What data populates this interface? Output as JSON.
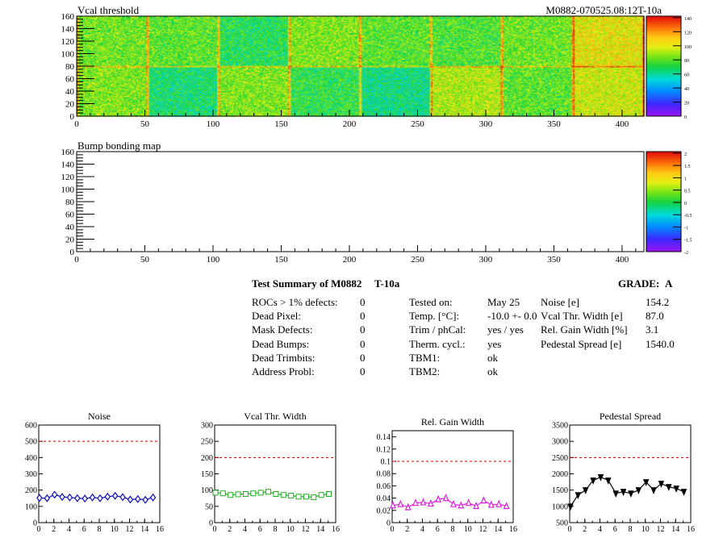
{
  "maps": [
    {
      "title": "Vcal threshold",
      "module_label": "M0882-070525.08:12T-10a",
      "xticks": [
        0,
        50,
        100,
        150,
        200,
        250,
        300,
        350,
        400
      ],
      "yticks": [
        0,
        20,
        40,
        60,
        80,
        100,
        120,
        140,
        160
      ],
      "palette_ticks": [
        "0",
        "20",
        "40",
        "60",
        "80",
        "100",
        "120",
        "140"
      ],
      "roc_means_top": [
        85,
        82,
        72,
        88,
        82,
        80,
        85,
        105
      ],
      "roc_means_bottom": [
        88,
        68,
        88,
        74,
        65,
        95,
        82,
        100
      ]
    },
    {
      "title": "Bump bonding map",
      "xticks": [
        0,
        50,
        100,
        150,
        200,
        250,
        300,
        350,
        400
      ],
      "yticks": [
        0,
        20,
        40,
        60,
        80,
        100,
        120,
        140,
        160
      ],
      "palette_ticks": [
        "-2",
        "-1.5",
        "-1",
        "-0.5",
        "0",
        "0.5",
        "1",
        "1.5",
        "2"
      ]
    }
  ],
  "summary": {
    "title": "Test Summary of M0882",
    "test_label": "T-10a",
    "grade_label": "GRADE:",
    "grade": "A",
    "defects": [
      {
        "label": "ROCs > 1% defects:",
        "value": "0"
      },
      {
        "label": "Dead Pixel:",
        "value": "0"
      },
      {
        "label": "Mask Defects:",
        "value": "0"
      },
      {
        "label": "Dead Bumps:",
        "value": "0"
      },
      {
        "label": "Dead Trimbits:",
        "value": "0"
      },
      {
        "label": "Address Probl:",
        "value": "0"
      }
    ],
    "conditions": [
      {
        "label": "Tested on:",
        "value": "May 25"
      },
      {
        "label": "Temp. [°C]:",
        "value": "-10.0 +- 0.0"
      },
      {
        "label": "Trim / phCal:",
        "value": "yes / yes"
      },
      {
        "label": "Therm. cycl.:",
        "value": "yes"
      },
      {
        "label": "TBM1:",
        "value": "ok"
      },
      {
        "label": "TBM2:",
        "value": "ok"
      }
    ],
    "results": [
      {
        "label": "Noise [e]",
        "value": "154.2"
      },
      {
        "label": "Vcal Thr. Width [e]",
        "value": "87.0"
      },
      {
        "label": "Rel. Gain Width [%]",
        "value": "3.1"
      },
      {
        "label": "Pedestal Spread [e]",
        "value": "1540.0"
      }
    ]
  },
  "chart_data": [
    {
      "type": "scatter",
      "title": "Noise",
      "x": [
        0,
        1,
        2,
        3,
        4,
        5,
        6,
        7,
        8,
        9,
        10,
        11,
        12,
        13,
        14,
        15
      ],
      "values": [
        152,
        150,
        172,
        158,
        155,
        150,
        148,
        155,
        150,
        160,
        165,
        157,
        142,
        145,
        140,
        155
      ],
      "ylim": [
        0,
        600
      ],
      "yticks": [
        "0",
        "100",
        "200",
        "300",
        "400",
        "500",
        "600"
      ],
      "xlim": [
        0,
        16
      ],
      "xticks": [
        "0",
        "2",
        "4",
        "6",
        "8",
        "10",
        "12",
        "14",
        "16"
      ],
      "threshold": 500,
      "color": "#1010c0",
      "marker": "diamond"
    },
    {
      "type": "scatter",
      "title": "Vcal Thr. Width",
      "x": [
        0,
        1,
        2,
        3,
        4,
        5,
        6,
        7,
        8,
        9,
        10,
        11,
        12,
        13,
        14,
        15
      ],
      "values": [
        92,
        90,
        85,
        87,
        88,
        90,
        92,
        95,
        88,
        85,
        83,
        80,
        80,
        78,
        85,
        88
      ],
      "ylim": [
        0,
        300
      ],
      "yticks": [
        "0",
        "50",
        "100",
        "150",
        "200",
        "250",
        "300"
      ],
      "xlim": [
        0,
        16
      ],
      "xticks": [
        "0",
        "2",
        "4",
        "6",
        "8",
        "10",
        "12",
        "14",
        "16"
      ],
      "threshold": 200,
      "color": "#20b020",
      "marker": "square"
    },
    {
      "type": "scatter",
      "title": "Rel. Gain Width",
      "x": [
        0,
        1,
        2,
        3,
        4,
        5,
        6,
        7,
        8,
        9,
        10,
        11,
        12,
        13,
        14,
        15
      ],
      "values": [
        0.028,
        0.03,
        0.025,
        0.032,
        0.033,
        0.031,
        0.038,
        0.04,
        0.03,
        0.028,
        0.032,
        0.027,
        0.036,
        0.029,
        0.03,
        0.027
      ],
      "ylim": [
        0,
        0.15
      ],
      "yticks": [
        "0",
        "0.02",
        "0.04",
        "0.06",
        "0.08",
        "0.1",
        "0.12",
        "0.14"
      ],
      "xlim": [
        0,
        16
      ],
      "xticks": [
        "0",
        "2",
        "4",
        "6",
        "8",
        "10",
        "12",
        "14",
        "16"
      ],
      "threshold": 0.1,
      "color": "#e020e0",
      "marker": "triangle-up"
    },
    {
      "type": "line",
      "title": "Pedestal Spread",
      "x": [
        0,
        1,
        2,
        3,
        4,
        5,
        6,
        7,
        8,
        9,
        10,
        11,
        12,
        13,
        14,
        15
      ],
      "values": [
        1000,
        1350,
        1500,
        1800,
        1900,
        1800,
        1400,
        1450,
        1400,
        1500,
        1750,
        1500,
        1700,
        1600,
        1550,
        1450
      ],
      "ylim": [
        500,
        3500
      ],
      "yticks": [
        "500",
        "1000",
        "1500",
        "2000",
        "2500",
        "3000",
        "3500"
      ],
      "xlim": [
        0,
        16
      ],
      "xticks": [
        "0",
        "2",
        "4",
        "6",
        "8",
        "10",
        "12",
        "14",
        "16"
      ],
      "threshold": 2500,
      "color": "#000000",
      "marker": "triangle-down"
    }
  ]
}
